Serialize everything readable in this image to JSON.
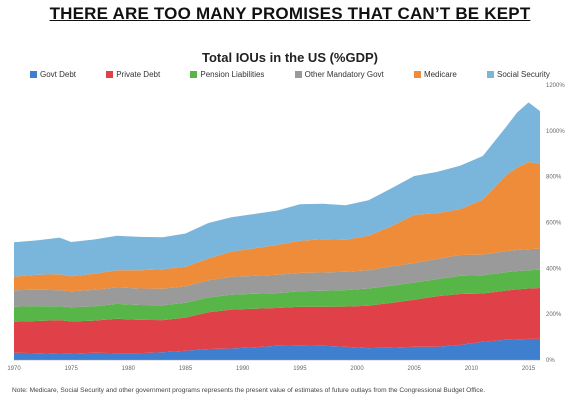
{
  "headline": "THERE ARE TOO MANY PROMISES THAT CAN’T BE KEPT",
  "note": "Note: Medicare, Social Security and other government programs represents the present value of estimates of future outlays from the Congressional Budget Office.",
  "chart_data": {
    "type": "area",
    "stacked": true,
    "title": "Total IOUs in the US (%GDP)",
    "xlabel": "",
    "ylabel": "",
    "xlim": [
      1970,
      2016
    ],
    "ylim": [
      0,
      1200
    ],
    "x_ticks": [
      "1970",
      "1975",
      "1980",
      "1985",
      "1990",
      "1995",
      "2000",
      "2005",
      "2010",
      "2015"
    ],
    "y_ticks": [
      "0%",
      "200%",
      "400%",
      "600%",
      "800%",
      "1000%",
      "1200%"
    ],
    "y_tick_values": [
      0,
      200,
      400,
      600,
      800,
      1000,
      1200
    ],
    "legend_position": "top",
    "grid": false,
    "x": [
      1970,
      1972,
      1974,
      1975,
      1977,
      1979,
      1981,
      1983,
      1985,
      1987,
      1989,
      1991,
      1993,
      1995,
      1997,
      1999,
      2001,
      2003,
      2005,
      2007,
      2009,
      2011,
      2013,
      2014,
      2015,
      2016
    ],
    "series": [
      {
        "name": "Govt Debt",
        "color": "#3f7fcf",
        "values": [
          32,
          30,
          26,
          28,
          32,
          30,
          30,
          34,
          40,
          48,
          50,
          56,
          62,
          64,
          62,
          58,
          52,
          54,
          58,
          58,
          66,
          80,
          88,
          90,
          92,
          92
        ]
      },
      {
        "name": "Private Debt",
        "color": "#e04148",
        "values": [
          135,
          140,
          148,
          140,
          140,
          150,
          145,
          140,
          145,
          160,
          170,
          168,
          165,
          168,
          170,
          175,
          185,
          195,
          205,
          220,
          222,
          210,
          215,
          218,
          220,
          222
        ]
      },
      {
        "name": "Pension Liabilities",
        "color": "#58b648",
        "values": [
          65,
          65,
          60,
          62,
          62,
          65,
          65,
          65,
          65,
          65,
          65,
          65,
          65,
          68,
          70,
          72,
          75,
          75,
          75,
          75,
          80,
          80,
          80,
          80,
          80,
          80
        ]
      },
      {
        "name": "Other Mandatory Govt",
        "color": "#9a9a9a",
        "values": [
          72,
          72,
          70,
          70,
          72,
          72,
          72,
          72,
          72,
          75,
          78,
          78,
          80,
          80,
          80,
          80,
          80,
          85,
          85,
          88,
          90,
          90,
          92,
          92,
          92,
          92
        ]
      },
      {
        "name": "Medicare",
        "color": "#ee8c3a",
        "values": [
          60,
          65,
          70,
          65,
          70,
          75,
          80,
          85,
          85,
          95,
          110,
          120,
          130,
          140,
          145,
          140,
          150,
          175,
          210,
          200,
          200,
          240,
          330,
          360,
          380,
          370
        ]
      },
      {
        "name": "Social Security",
        "color": "#7ab6dc",
        "values": [
          150,
          150,
          160,
          150,
          150,
          150,
          145,
          140,
          145,
          155,
          150,
          150,
          150,
          160,
          155,
          150,
          155,
          165,
          170,
          180,
          190,
          190,
          210,
          240,
          260,
          230
        ]
      }
    ]
  }
}
